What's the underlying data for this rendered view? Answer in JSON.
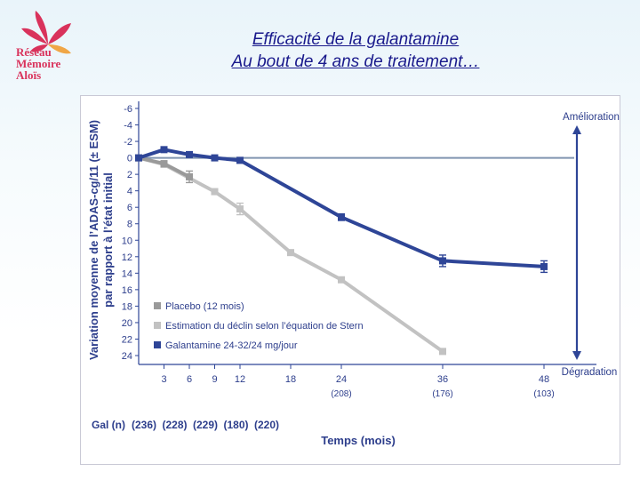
{
  "logo": {
    "lines": [
      "Réseau",
      "Mémoire",
      "Aloïs"
    ],
    "colors": {
      "red": "#d9325b",
      "orange": "#f0a646"
    }
  },
  "slide": {
    "title_line1": "Efficacité de la galantamine",
    "title_line2": "Au bout de 4 ans de traitement…"
  },
  "chart_data": {
    "type": "line",
    "ylabel_line1": "Variation moyenne de l’ADAS-cg/11 (± ESM)",
    "ylabel_line2": "par rapport à l’état initial",
    "xlabel": "Temps (mois)",
    "gal_label": "Gal (n)",
    "gal_counts": [
      "(236)",
      "(228)",
      "(229)",
      "(180)",
      "(220)"
    ],
    "x_ticks": [
      {
        "value": 3,
        "label": "3",
        "sub": ""
      },
      {
        "value": 6,
        "label": "6",
        "sub": ""
      },
      {
        "value": 9,
        "label": "9",
        "sub": ""
      },
      {
        "value": 12,
        "label": "12",
        "sub": ""
      },
      {
        "value": 18,
        "label": "18",
        "sub": ""
      },
      {
        "value": 24,
        "label": "24",
        "sub": "(208)"
      },
      {
        "value": 36,
        "label": "36",
        "sub": "(176)"
      },
      {
        "value": 48,
        "label": "48",
        "sub": "(103)"
      }
    ],
    "y_tick_labels": [
      "-6",
      "-4",
      "-2",
      "0",
      "2",
      "4",
      "6",
      "8",
      "10",
      "12",
      "14",
      "16",
      "18",
      "20",
      "22",
      "24"
    ],
    "y_tick_values": [
      -6,
      -4,
      -2,
      0,
      2,
      4,
      6,
      8,
      10,
      12,
      14,
      16,
      18,
      20,
      22,
      24
    ],
    "ylim": [
      -6,
      24
    ],
    "y_inverted": true,
    "xlim": [
      0,
      48
    ],
    "annotation_top": "Amélioration",
    "annotation_bottom": "Dégradation",
    "reference_line": 0,
    "series": [
      {
        "name": "Placebo  (12 mois)",
        "color": "#9a9a9a",
        "x": [
          0,
          3,
          6
        ],
        "y": [
          0,
          0.7,
          2.3
        ],
        "err": [
          0,
          0.3,
          0.7
        ]
      },
      {
        "name": "Estimation du déclin selon l’équation de Stern",
        "color": "#c2c2c2",
        "x": [
          0,
          3,
          9,
          12,
          18,
          24,
          36
        ],
        "y": [
          0,
          0.8,
          4.1,
          6.2,
          11.5,
          14.8,
          23.5
        ],
        "err": [
          0,
          0,
          0,
          0.7,
          0,
          0,
          0
        ]
      },
      {
        "name": "Galantamine 24-32/24 mg/jour",
        "color": "#2e4597",
        "x": [
          0,
          3,
          6,
          9,
          12,
          24,
          36,
          48
        ],
        "y": [
          0,
          -1.0,
          -0.4,
          0,
          0.3,
          7.2,
          12.5,
          13.2
        ],
        "err": [
          0,
          0.3,
          0.3,
          0.3,
          0.3,
          0.4,
          0.7,
          0.7
        ]
      }
    ]
  }
}
